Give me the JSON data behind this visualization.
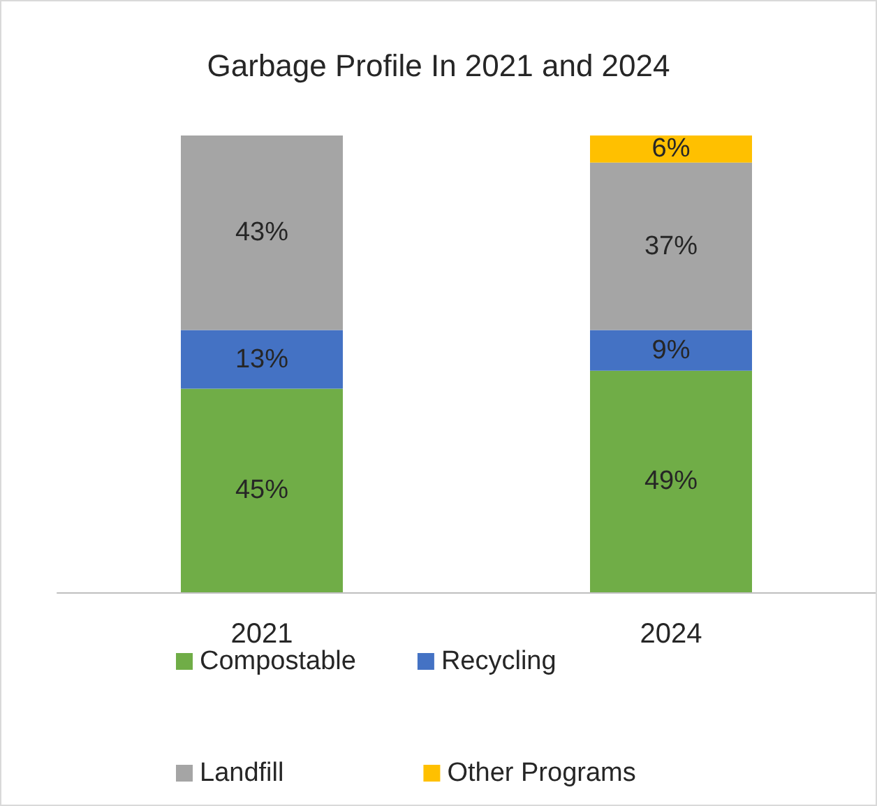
{
  "chart_data": {
    "type": "bar",
    "title": "Garbage Profile In 2021 and 2024",
    "categories": [
      "2021",
      "2024"
    ],
    "stacked": true,
    "legend": "bottom",
    "grid": false,
    "series": [
      {
        "name": "Compostable",
        "color": "#70ad47",
        "values": [
          45,
          49
        ],
        "value_labels": [
          "45%",
          "49%"
        ]
      },
      {
        "name": "Recycling",
        "color": "#4472c4",
        "values": [
          13,
          9
        ],
        "value_labels": [
          "13%",
          "9%"
        ]
      },
      {
        "name": "Landfill",
        "color": "#a5a5a5",
        "values": [
          43,
          37
        ],
        "value_labels": [
          "43%",
          "37%"
        ]
      },
      {
        "name": "Other Programs",
        "color": "#ffc000",
        "values": [
          null,
          6
        ],
        "value_labels": [
          null,
          "6%"
        ]
      }
    ]
  }
}
